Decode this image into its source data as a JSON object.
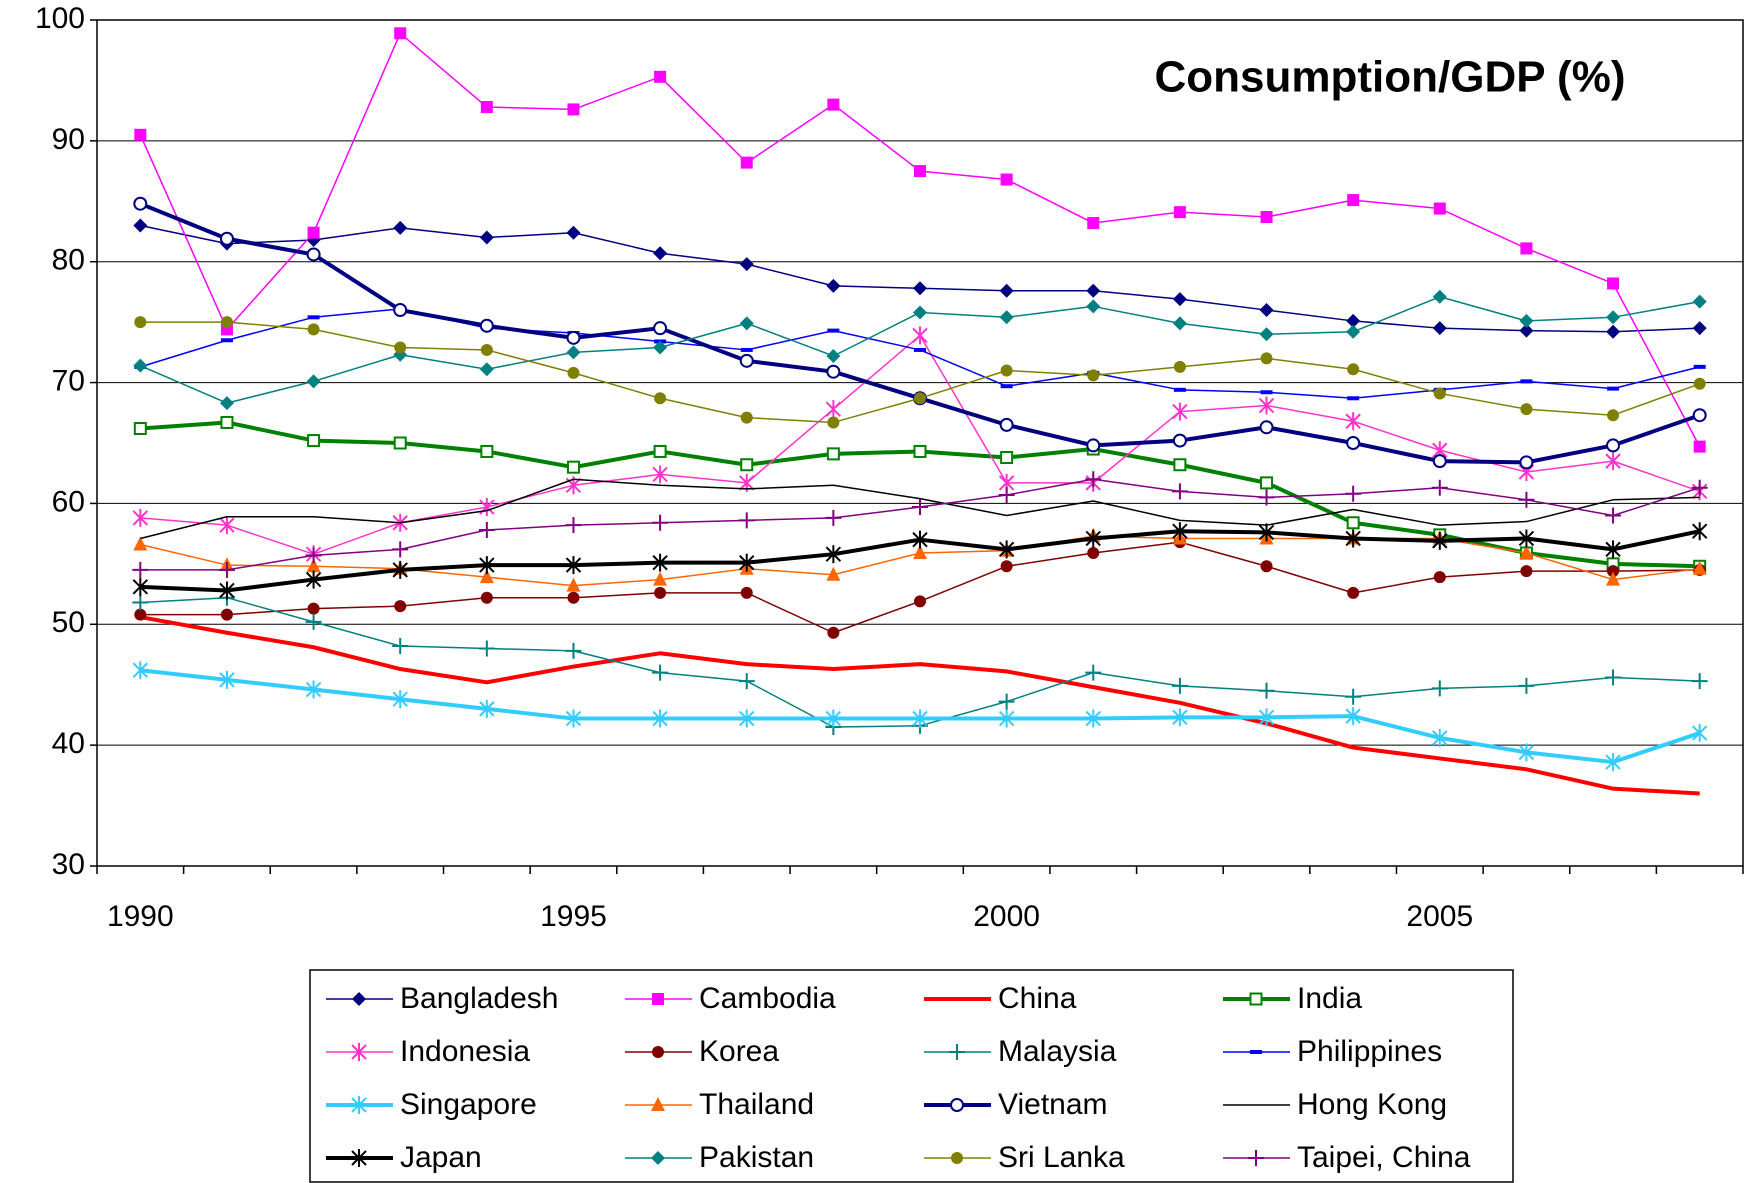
{
  "chart_data": {
    "type": "line",
    "title": "Consumption/GDP (%)",
    "categories": [
      "1990",
      null,
      null,
      null,
      null,
      "1995",
      null,
      null,
      null,
      null,
      "2000",
      null,
      null,
      null,
      null,
      "2005",
      null,
      null,
      null
    ],
    "ylim": [
      30,
      100
    ],
    "yticks": [
      30,
      40,
      50,
      60,
      70,
      80,
      90,
      100
    ],
    "grid": true,
    "legend": "bottom",
    "series": [
      {
        "name": "Bangladesh",
        "color": "#000080",
        "marker": "diamond",
        "line_width": 1.5,
        "values": [
          83,
          81.5,
          81.8,
          82.8,
          82,
          82.4,
          80.7,
          79.8,
          78,
          77.8,
          77.6,
          77.6,
          76.9,
          76,
          75.1,
          74.5,
          74.3,
          74.2,
          74.5
        ]
      },
      {
        "name": "Cambodia",
        "color": "#ff00ff",
        "marker": "square",
        "line_width": 1.5,
        "values": [
          90.5,
          74.4,
          82.4,
          98.9,
          92.8,
          92.6,
          95.3,
          88.2,
          93,
          87.5,
          86.8,
          83.2,
          84.1,
          83.7,
          85.1,
          84.4,
          81.1,
          78.2,
          64.7
        ]
      },
      {
        "name": "China",
        "color": "#ff0000",
        "marker": "none",
        "line_width": 4,
        "values": [
          50.6,
          49.3,
          48.1,
          46.3,
          45.2,
          46.5,
          47.6,
          46.7,
          46.3,
          46.7,
          46.1,
          44.8,
          43.5,
          41.8,
          39.8,
          38.9,
          38,
          36.4,
          36
        ]
      },
      {
        "name": "India",
        "color": "#008000",
        "marker": "open-square",
        "line_width": 4,
        "values": [
          66.2,
          66.7,
          65.2,
          65,
          64.3,
          63,
          64.3,
          63.2,
          64.1,
          64.3,
          63.8,
          64.5,
          63.2,
          61.7,
          58.4,
          57.4,
          55.9,
          55,
          54.8
        ]
      },
      {
        "name": "Indonesia",
        "color": "#ff33cc",
        "marker": "star",
        "line_width": 1.5,
        "values": [
          58.8,
          58.2,
          55.8,
          58.4,
          59.7,
          61.5,
          62.4,
          61.7,
          67.8,
          73.9,
          61.7,
          61.7,
          67.6,
          68.1,
          66.8,
          64.4,
          62.6,
          63.5,
          61
        ]
      },
      {
        "name": "Korea",
        "color": "#800000",
        "marker": "circle",
        "line_width": 1.5,
        "values": [
          50.8,
          50.8,
          51.3,
          51.5,
          52.2,
          52.2,
          52.6,
          52.6,
          49.3,
          51.9,
          54.8,
          55.9,
          56.8,
          54.8,
          52.6,
          53.9,
          54.4,
          54.4,
          54.5
        ]
      },
      {
        "name": "Malaysia",
        "color": "#008080",
        "marker": "plus",
        "line_width": 1.5,
        "values": [
          51.8,
          52.2,
          50.2,
          48.2,
          48,
          47.8,
          46,
          45.3,
          41.5,
          41.6,
          43.6,
          46,
          44.9,
          44.5,
          44,
          44.7,
          44.9,
          45.6,
          45.3
        ]
      },
      {
        "name": "Philippines",
        "color": "#0000ff",
        "marker": "dash",
        "line_width": 1.5,
        "values": [
          71.3,
          73.5,
          75.4,
          76.1,
          74.5,
          74.1,
          73.4,
          72.7,
          74.3,
          72.7,
          69.7,
          70.8,
          69.4,
          69.2,
          68.7,
          69.4,
          70.1,
          69.5,
          71.3
        ]
      },
      {
        "name": "Singapore",
        "color": "#33ccff",
        "marker": "star",
        "line_width": 4,
        "values": [
          46.2,
          45.4,
          44.6,
          43.8,
          43,
          42.2,
          42.2,
          42.2,
          42.2,
          42.2,
          42.2,
          42.2,
          42.3,
          42.3,
          42.4,
          40.6,
          39.4,
          38.6,
          41
        ]
      },
      {
        "name": "Thailand",
        "color": "#ff6600",
        "marker": "triangle",
        "line_width": 1.5,
        "values": [
          56.6,
          54.9,
          54.8,
          54.6,
          53.9,
          53.2,
          53.7,
          54.6,
          54.1,
          55.9,
          56.1,
          57.3,
          57.1,
          57.1,
          57.1,
          57.1,
          55.9,
          53.7,
          54.6
        ]
      },
      {
        "name": "Vietnam",
        "color": "#000080",
        "marker": "open-circle",
        "line_width": 4,
        "values": [
          84.8,
          81.9,
          80.6,
          76,
          74.7,
          73.7,
          74.5,
          71.8,
          70.9,
          68.7,
          66.5,
          64.8,
          65.2,
          66.3,
          65,
          63.5,
          63.4,
          64.8,
          67.3
        ]
      },
      {
        "name": "Hong Kong",
        "color": "#000000",
        "marker": "none",
        "line_width": 1.5,
        "values": [
          57.1,
          58.9,
          58.9,
          58.4,
          59.4,
          62,
          61.5,
          61.2,
          61.5,
          60.4,
          59,
          60.2,
          58.6,
          58.2,
          59.5,
          58.2,
          58.5,
          60.3,
          60.5
        ]
      },
      {
        "name": "Japan",
        "color": "#000000",
        "marker": "star",
        "line_width": 4,
        "values": [
          53.1,
          52.8,
          53.7,
          54.5,
          54.9,
          54.9,
          55.1,
          55.1,
          55.8,
          57,
          56.2,
          57.1,
          57.7,
          57.6,
          57.1,
          56.9,
          57.1,
          56.2,
          57.7
        ]
      },
      {
        "name": "Pakistan",
        "color": "#008080",
        "marker": "diamond",
        "line_width": 1.5,
        "values": [
          71.4,
          68.3,
          70.1,
          72.3,
          71.1,
          72.5,
          72.9,
          74.9,
          72.2,
          75.8,
          75.4,
          76.3,
          74.9,
          74,
          74.2,
          77.1,
          75.1,
          75.4,
          76.7
        ]
      },
      {
        "name": "Sri Lanka",
        "color": "#808000",
        "marker": "circle",
        "line_width": 1.5,
        "values": [
          75,
          75,
          74.4,
          72.9,
          72.7,
          70.8,
          68.7,
          67.1,
          66.7,
          68.7,
          71,
          70.6,
          71.3,
          72,
          71.1,
          69.1,
          67.8,
          67.3,
          69.9
        ]
      },
      {
        "name": "Taipei, China",
        "color": "#800080",
        "marker": "plus",
        "line_width": 1.5,
        "values": [
          54.5,
          54.5,
          55.7,
          56.2,
          57.8,
          58.2,
          58.4,
          58.6,
          58.8,
          59.7,
          60.7,
          62,
          61,
          60.5,
          60.8,
          61.3,
          60.3,
          59,
          61.3
        ]
      }
    ]
  }
}
